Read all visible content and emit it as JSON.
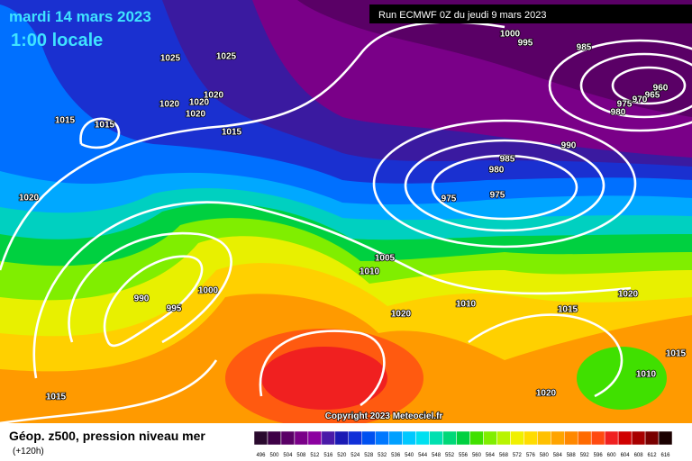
{
  "header": {
    "date": "mardi 14 mars 2023",
    "time": "1:00 locale",
    "run": "Run ECMWF 0Z du jeudi 9 mars 2023"
  },
  "map": {
    "isobar_labels": [
      "1000",
      "995",
      "985",
      "960",
      "965",
      "970",
      "975",
      "980",
      "1025",
      "1025",
      "1020",
      "1020",
      "1020",
      "1020",
      "1015",
      "1015",
      "1015",
      "990",
      "985",
      "980",
      "975",
      "975",
      "1020",
      "1005",
      "1010",
      "1000",
      "990",
      "995",
      "1020",
      "1010",
      "1015",
      "1020",
      "1015",
      "1010",
      "1020",
      "1015"
    ]
  },
  "copyright": "Copyright 2023 Meteociel.fr",
  "legend": {
    "title": "Géop. z500, pression niveau mer",
    "lead": "(+120h)",
    "scale": [
      {
        "label": "496",
        "color": "#2a0a2e"
      },
      {
        "label": "500",
        "color": "#3e0046"
      },
      {
        "label": "504",
        "color": "#5a0066"
      },
      {
        "label": "508",
        "color": "#7a0088"
      },
      {
        "label": "512",
        "color": "#8c00a0"
      },
      {
        "label": "516",
        "color": "#4a1aa8"
      },
      {
        "label": "520",
        "color": "#1a1ab4"
      },
      {
        "label": "524",
        "color": "#1030d8"
      },
      {
        "label": "528",
        "color": "#0050f0"
      },
      {
        "label": "532",
        "color": "#0078ff"
      },
      {
        "label": "536",
        "color": "#00a0ff"
      },
      {
        "label": "540",
        "color": "#00c8ff"
      },
      {
        "label": "544",
        "color": "#00e0f0"
      },
      {
        "label": "548",
        "color": "#00e0b0"
      },
      {
        "label": "552",
        "color": "#00d878"
      },
      {
        "label": "556",
        "color": "#00d040"
      },
      {
        "label": "560",
        "color": "#40e000"
      },
      {
        "label": "564",
        "color": "#80ee00"
      },
      {
        "label": "568",
        "color": "#b8f400"
      },
      {
        "label": "572",
        "color": "#f0f000"
      },
      {
        "label": "576",
        "color": "#ffdc00"
      },
      {
        "label": "580",
        "color": "#ffc000"
      },
      {
        "label": "584",
        "color": "#ffa400"
      },
      {
        "label": "588",
        "color": "#ff8800"
      },
      {
        "label": "592",
        "color": "#ff6a00"
      },
      {
        "label": "596",
        "color": "#ff4a10"
      },
      {
        "label": "600",
        "color": "#f02020"
      },
      {
        "label": "604",
        "color": "#d00000"
      },
      {
        "label": "608",
        "color": "#a80000"
      },
      {
        "label": "612",
        "color": "#780000"
      },
      {
        "label": "616",
        "color": "#1a0000"
      }
    ]
  }
}
